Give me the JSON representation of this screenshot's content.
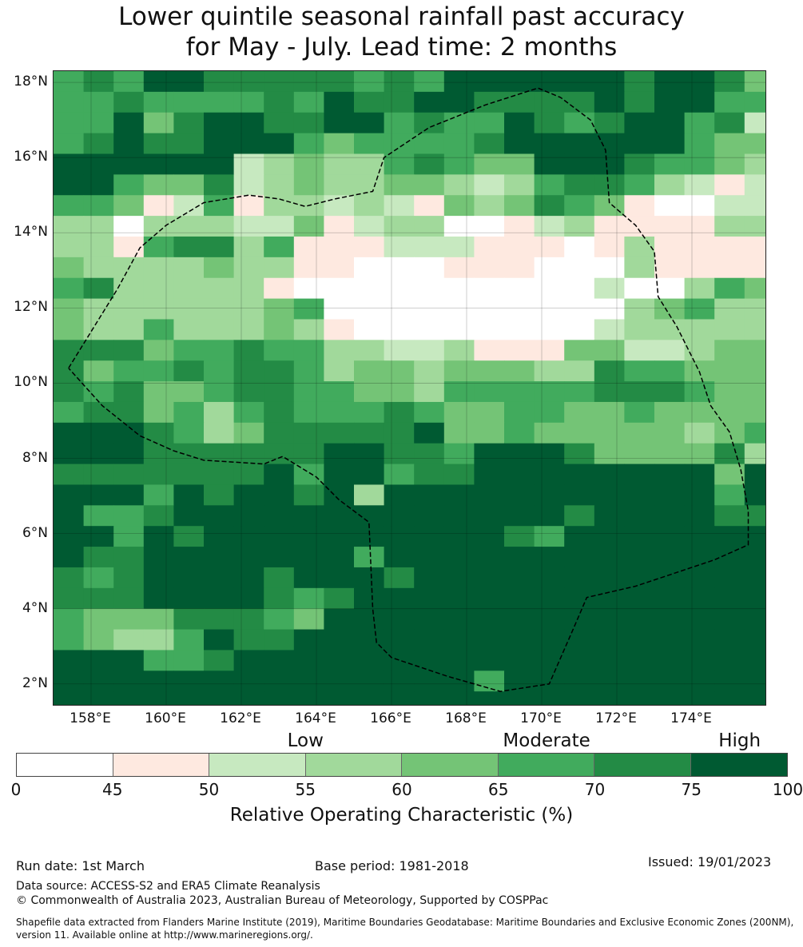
{
  "title": {
    "line1": "Lower quintile seasonal rainfall past accuracy",
    "line2": "for May - July. Lead time: 2 months"
  },
  "map": {
    "lon_range": [
      157.0,
      176.0
    ],
    "lat_range": [
      1.4,
      18.3
    ],
    "lon_ticks": [
      "158°E",
      "160°E",
      "162°E",
      "164°E",
      "166°E",
      "168°E",
      "170°E",
      "172°E",
      "174°E"
    ],
    "lat_ticks": [
      "18°N",
      "16°N",
      "14°N",
      "12°N",
      "10°N",
      "8°N",
      "6°N",
      "4°N",
      "2°N"
    ],
    "eez_boundary": [
      [
        157.4,
        10.4
      ],
      [
        158.7,
        12.5
      ],
      [
        159.3,
        13.6
      ],
      [
        160.0,
        14.2
      ],
      [
        161.0,
        14.8
      ],
      [
        162.2,
        15.0
      ],
      [
        163.0,
        14.9
      ],
      [
        163.7,
        14.7
      ],
      [
        164.5,
        14.9
      ],
      [
        165.5,
        15.1
      ],
      [
        165.8,
        16.0
      ],
      [
        167.0,
        16.8
      ],
      [
        168.5,
        17.4
      ],
      [
        169.9,
        17.85
      ],
      [
        170.5,
        17.6
      ],
      [
        171.3,
        17.0
      ],
      [
        171.7,
        16.2
      ],
      [
        171.8,
        14.8
      ],
      [
        172.5,
        14.2
      ],
      [
        173.0,
        13.5
      ],
      [
        173.1,
        12.3
      ],
      [
        173.6,
        11.5
      ],
      [
        174.2,
        10.3
      ],
      [
        174.5,
        9.4
      ],
      [
        175.0,
        8.7
      ],
      [
        175.3,
        7.7
      ],
      [
        175.5,
        6.6
      ],
      [
        175.5,
        5.7
      ],
      [
        174.6,
        5.3
      ],
      [
        173.4,
        4.9
      ],
      [
        172.5,
        4.6
      ],
      [
        171.2,
        4.3
      ],
      [
        170.9,
        3.6
      ],
      [
        170.2,
        2.0
      ],
      [
        168.9,
        1.8
      ],
      [
        167.5,
        2.2
      ],
      [
        166.0,
        2.7
      ],
      [
        165.6,
        3.1
      ],
      [
        165.5,
        4.0
      ],
      [
        165.4,
        6.3
      ],
      [
        164.6,
        6.9
      ],
      [
        164.0,
        7.5
      ],
      [
        163.1,
        8.05
      ],
      [
        162.6,
        7.85
      ],
      [
        161.0,
        7.95
      ],
      [
        160.2,
        8.2
      ],
      [
        159.3,
        8.6
      ],
      [
        158.3,
        9.4
      ],
      [
        157.4,
        10.4
      ]
    ]
  },
  "chart_data": {
    "type": "heatmap",
    "title": "Lower quintile seasonal rainfall past accuracy for May - July. Lead time: 2 months",
    "xlabel": "",
    "ylabel": "",
    "xlim": [
      157.0,
      176.0
    ],
    "ylim": [
      1.4,
      18.3
    ],
    "cell_size_deg": 0.8,
    "column_lon_left_edges": [
      157.0,
      157.8,
      158.6,
      159.4,
      160.2,
      161.0,
      161.8,
      162.6,
      163.4,
      164.2,
      165.0,
      165.8,
      166.6,
      167.4,
      168.2,
      169.0,
      169.8,
      170.6,
      171.4,
      172.2,
      173.0,
      173.8,
      174.6,
      175.4
    ],
    "row_lat_top_edges": [
      18.3,
      17.75,
      17.2,
      16.65,
      16.1,
      15.55,
      15.0,
      14.45,
      13.9,
      13.35,
      12.8,
      12.25,
      11.7,
      11.15,
      10.6,
      10.05,
      9.5,
      8.95,
      8.4,
      7.85,
      7.3,
      6.75,
      6.2,
      5.65,
      5.1,
      4.55,
      4.0,
      3.45,
      2.9,
      2.35,
      1.8
    ],
    "values_roc_percent": [
      [
        67,
        72,
        68,
        78,
        78,
        72,
        72,
        72,
        72,
        72,
        68,
        72,
        68,
        78,
        78,
        78,
        78,
        78,
        78,
        72,
        78,
        78,
        72,
        62
      ],
      [
        67,
        68,
        72,
        68,
        68,
        68,
        68,
        72,
        68,
        78,
        72,
        72,
        78,
        78,
        72,
        72,
        72,
        72,
        78,
        72,
        78,
        78,
        68,
        68
      ],
      [
        67,
        68,
        78,
        62,
        72,
        78,
        78,
        72,
        72,
        78,
        78,
        68,
        72,
        68,
        68,
        78,
        72,
        68,
        72,
        78,
        78,
        68,
        72,
        52
      ],
      [
        67,
        72,
        78,
        72,
        72,
        78,
        78,
        78,
        68,
        62,
        68,
        68,
        68,
        68,
        72,
        78,
        78,
        78,
        78,
        78,
        78,
        68,
        62,
        62
      ],
      [
        78,
        78,
        78,
        78,
        78,
        78,
        52,
        57,
        62,
        57,
        57,
        68,
        72,
        68,
        62,
        62,
        78,
        78,
        78,
        72,
        68,
        68,
        62,
        57
      ],
      [
        78,
        78,
        68,
        62,
        62,
        72,
        52,
        57,
        62,
        57,
        57,
        62,
        62,
        57,
        52,
        57,
        68,
        72,
        72,
        68,
        57,
        52,
        47,
        52
      ],
      [
        68,
        68,
        62,
        47,
        52,
        68,
        47,
        57,
        57,
        52,
        57,
        52,
        47,
        62,
        57,
        62,
        72,
        68,
        62,
        47,
        40,
        40,
        52,
        52
      ],
      [
        57,
        57,
        40,
        57,
        57,
        57,
        52,
        52,
        62,
        47,
        52,
        57,
        57,
        40,
        40,
        47,
        52,
        57,
        47,
        47,
        47,
        47,
        57,
        57
      ],
      [
        57,
        57,
        47,
        68,
        72,
        72,
        57,
        68,
        47,
        47,
        47,
        52,
        52,
        52,
        47,
        47,
        47,
        40,
        47,
        57,
        47,
        47,
        47,
        47
      ],
      [
        62,
        57,
        57,
        57,
        57,
        62,
        57,
        57,
        47,
        47,
        40,
        40,
        40,
        47,
        47,
        47,
        40,
        40,
        40,
        57,
        47,
        47,
        47,
        47
      ],
      [
        68,
        72,
        57,
        57,
        57,
        57,
        57,
        47,
        40,
        40,
        40,
        40,
        40,
        40,
        40,
        40,
        40,
        40,
        52,
        40,
        40,
        57,
        68,
        62
      ],
      [
        62,
        57,
        57,
        57,
        57,
        57,
        57,
        62,
        68,
        40,
        40,
        40,
        40,
        40,
        40,
        40,
        40,
        40,
        40,
        57,
        62,
        68,
        57,
        57
      ],
      [
        62,
        57,
        57,
        68,
        57,
        57,
        57,
        62,
        57,
        47,
        40,
        40,
        40,
        40,
        40,
        40,
        40,
        40,
        52,
        57,
        57,
        57,
        57,
        57
      ],
      [
        72,
        72,
        72,
        62,
        68,
        68,
        72,
        68,
        68,
        57,
        57,
        52,
        52,
        57,
        47,
        47,
        47,
        62,
        62,
        52,
        52,
        57,
        62,
        62
      ],
      [
        72,
        62,
        68,
        68,
        72,
        68,
        72,
        72,
        68,
        57,
        62,
        62,
        57,
        62,
        62,
        62,
        57,
        57,
        72,
        68,
        68,
        62,
        62,
        62
      ],
      [
        72,
        68,
        72,
        62,
        62,
        68,
        72,
        72,
        68,
        68,
        62,
        62,
        57,
        68,
        68,
        68,
        68,
        68,
        72,
        72,
        72,
        68,
        62,
        62
      ],
      [
        68,
        72,
        72,
        62,
        68,
        57,
        68,
        72,
        68,
        68,
        68,
        72,
        68,
        62,
        62,
        68,
        68,
        62,
        62,
        68,
        62,
        62,
        62,
        62
      ],
      [
        78,
        78,
        78,
        72,
        68,
        57,
        62,
        72,
        72,
        72,
        72,
        72,
        78,
        62,
        62,
        68,
        62,
        62,
        62,
        62,
        62,
        57,
        62,
        68
      ],
      [
        78,
        78,
        78,
        72,
        72,
        72,
        72,
        72,
        72,
        78,
        78,
        72,
        72,
        68,
        78,
        78,
        78,
        72,
        62,
        62,
        62,
        62,
        72,
        57
      ],
      [
        72,
        72,
        72,
        72,
        72,
        72,
        72,
        78,
        68,
        78,
        78,
        68,
        72,
        72,
        78,
        78,
        78,
        78,
        78,
        78,
        78,
        78,
        62,
        78
      ],
      [
        78,
        78,
        78,
        68,
        78,
        72,
        78,
        78,
        72,
        78,
        57,
        78,
        78,
        78,
        78,
        78,
        78,
        78,
        78,
        78,
        78,
        78,
        68,
        78
      ],
      [
        78,
        68,
        68,
        72,
        78,
        78,
        78,
        78,
        78,
        78,
        78,
        78,
        78,
        78,
        78,
        78,
        78,
        72,
        78,
        78,
        78,
        78,
        72,
        72
      ],
      [
        78,
        78,
        68,
        78,
        72,
        78,
        78,
        78,
        78,
        78,
        78,
        78,
        78,
        78,
        78,
        72,
        68,
        78,
        78,
        78,
        78,
        78,
        78,
        78
      ],
      [
        78,
        72,
        72,
        78,
        78,
        78,
        78,
        78,
        78,
        78,
        68,
        78,
        78,
        78,
        78,
        78,
        78,
        78,
        78,
        78,
        78,
        78,
        78,
        78
      ],
      [
        72,
        68,
        72,
        78,
        78,
        78,
        78,
        72,
        78,
        78,
        78,
        72,
        78,
        78,
        78,
        78,
        78,
        78,
        78,
        78,
        78,
        78,
        78,
        78
      ],
      [
        72,
        72,
        72,
        78,
        78,
        78,
        78,
        72,
        68,
        72,
        78,
        78,
        78,
        78,
        78,
        78,
        78,
        78,
        78,
        78,
        78,
        78,
        78,
        78
      ],
      [
        68,
        62,
        62,
        62,
        72,
        72,
        72,
        68,
        62,
        78,
        78,
        78,
        78,
        78,
        78,
        78,
        78,
        78,
        78,
        78,
        78,
        78,
        78,
        78
      ],
      [
        68,
        62,
        57,
        57,
        68,
        78,
        72,
        72,
        78,
        78,
        78,
        78,
        78,
        78,
        78,
        78,
        78,
        78,
        78,
        78,
        78,
        78,
        78,
        78
      ],
      [
        78,
        78,
        78,
        68,
        68,
        72,
        78,
        78,
        78,
        78,
        78,
        78,
        78,
        78,
        78,
        78,
        78,
        78,
        78,
        78,
        78,
        78,
        78,
        78
      ],
      [
        78,
        78,
        78,
        78,
        78,
        78,
        78,
        78,
        78,
        78,
        78,
        78,
        78,
        78,
        68,
        78,
        78,
        78,
        78,
        78,
        78,
        78,
        78,
        78
      ],
      [
        78,
        78,
        78,
        78,
        78,
        78,
        78,
        78,
        78,
        78,
        78,
        78,
        78,
        78,
        78,
        78,
        78,
        78,
        78,
        78,
        78,
        78,
        78,
        78
      ]
    ],
    "colorbar": {
      "bounds": [
        0,
        45,
        50,
        55,
        60,
        65,
        70,
        75,
        100
      ],
      "tick_labels": [
        "0",
        "45",
        "50",
        "55",
        "60",
        "65",
        "70",
        "75",
        "100"
      ],
      "colors": [
        "#ffffff",
        "#fee9e0",
        "#c7e9c0",
        "#a1d99b",
        "#74c476",
        "#41ab5d",
        "#238b45",
        "#005a32"
      ],
      "categories": [
        {
          "label": "Low",
          "position_value": 55
        },
        {
          "label": "Moderate",
          "position_value": 67.5
        },
        {
          "label": "High",
          "position_value": 87.5
        }
      ],
      "label": "Relative Operating Characteristic (%)"
    }
  },
  "footer": {
    "run_date": "Run date: 1st March",
    "base_period": "Base period: 1981-2018",
    "issued": "Issued: 19/01/2023",
    "data_source": "Data source: ACCESS-S2 and ERA5 Climate Reanalysis",
    "copyright": "© Commonwealth of Australia 2023, Australian Bureau of Meteorology, Supported by COSPPac",
    "shapefile_line1": "Shapefile data extracted from Flanders Marine Institute (2019), Maritime Boundaries Geodatabase: Maritime Boundaries and Exclusive Economic Zones (200NM),",
    "shapefile_line2": "version 11. Available online at http://www.marineregions.org/."
  }
}
